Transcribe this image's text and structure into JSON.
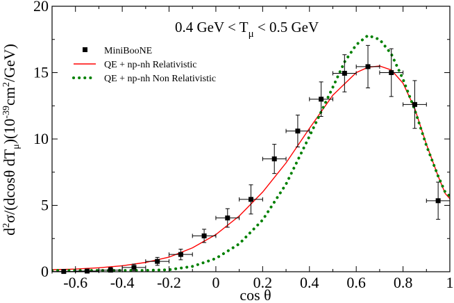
{
  "chart_data": {
    "type": "line",
    "title": "",
    "annotation": {
      "prefix": "0.4 GeV < T",
      "sub": "μ",
      "suffix": " < 0.5 GeV"
    },
    "xlabel": "cos θ",
    "ylabel": {
      "p1": "d",
      "s1": "2",
      "p2": "σ/(dcosθ dT",
      "s2": "μ",
      "p3": ")(10",
      "s3": "-39",
      "p4": "cm",
      "s4": "2",
      "p5": "/GeV)"
    },
    "xlim": [
      -0.7,
      1.0
    ],
    "ylim": [
      0,
      20
    ],
    "x_ticks": [
      -0.6,
      -0.4,
      -0.2,
      0,
      0.2,
      0.4,
      0.6,
      0.8,
      1
    ],
    "x_tick_labels": [
      "-0.6",
      "-0.4",
      "-0.2",
      "0",
      "0.2",
      "0.4",
      "0.6",
      "0.8",
      "1"
    ],
    "y_ticks": [
      0,
      5,
      10,
      15,
      20
    ],
    "y_tick_labels": [
      "0",
      "5",
      "10",
      "15",
      "20"
    ],
    "legend_position": "top-left",
    "legend": [
      {
        "label": "MiniBooNE",
        "style": "square-marker",
        "color": "#000000"
      },
      {
        "label": "QE + np-nh Relativistic",
        "style": "solid-line",
        "color": "#ff0000"
      },
      {
        "label": "QE + np-nh Non Relativistic",
        "style": "dotted-line",
        "color": "#008000"
      }
    ],
    "series": [
      {
        "name": "MiniBooNE",
        "kind": "points-with-errors",
        "color": "#000000",
        "x": [
          -0.65,
          -0.55,
          -0.45,
          -0.35,
          -0.25,
          -0.15,
          -0.05,
          0.05,
          0.15,
          0.25,
          0.35,
          0.45,
          0.55,
          0.65,
          0.75,
          0.85,
          0.95
        ],
        "y": [
          0.02,
          0.05,
          0.12,
          0.32,
          0.78,
          1.3,
          2.7,
          4.05,
          5.45,
          8.5,
          10.6,
          13.0,
          14.95,
          15.45,
          15.0,
          12.6,
          5.35
        ],
        "yerr": [
          0.1,
          0.15,
          0.2,
          0.25,
          0.3,
          0.4,
          0.5,
          0.7,
          1.1,
          1.1,
          1.2,
          1.3,
          1.4,
          1.6,
          1.8,
          1.8,
          1.4
        ],
        "xerr": 0.05
      },
      {
        "name": "QE + np-nh Relativistic",
        "kind": "line",
        "color": "#ff0000",
        "x": [
          -0.7,
          -0.6,
          -0.5,
          -0.4,
          -0.3,
          -0.2,
          -0.1,
          0.0,
          0.1,
          0.2,
          0.3,
          0.4,
          0.5,
          0.6,
          0.65,
          0.7,
          0.75,
          0.8,
          0.85,
          0.9,
          0.95,
          0.98,
          1.0
        ],
        "y": [
          0.15,
          0.2,
          0.3,
          0.45,
          0.7,
          1.1,
          1.8,
          2.8,
          4.2,
          6.0,
          8.2,
          10.8,
          13.3,
          15.0,
          15.4,
          15.5,
          15.2,
          14.2,
          12.3,
          9.6,
          7.2,
          5.9,
          5.5
        ]
      },
      {
        "name": "QE + np-nh Non Relativistic",
        "kind": "line",
        "color": "#008000",
        "x": [
          -0.7,
          -0.5,
          -0.3,
          -0.2,
          -0.1,
          0.0,
          0.1,
          0.2,
          0.3,
          0.4,
          0.5,
          0.55,
          0.6,
          0.65,
          0.7,
          0.75,
          0.8,
          0.85,
          0.9,
          0.95,
          0.98,
          1.0
        ],
        "y": [
          0.1,
          0.1,
          0.1,
          0.15,
          0.4,
          1.0,
          2.1,
          3.9,
          6.6,
          10.2,
          13.9,
          15.8,
          17.1,
          17.8,
          17.5,
          16.4,
          14.5,
          12.2,
          9.5,
          7.2,
          6.0,
          5.7
        ]
      }
    ]
  }
}
